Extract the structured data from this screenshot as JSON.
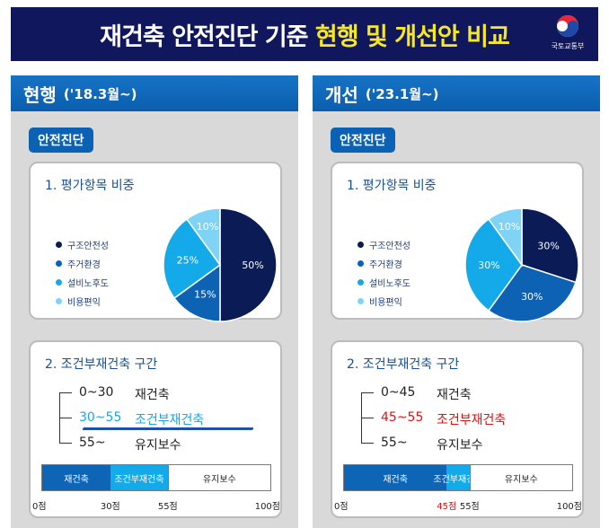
{
  "header": {
    "title_prefix": "재건축 안전진단 기준 ",
    "title_highlight": "현행 및 개선안 비교",
    "logo_text": "국토교통부"
  },
  "panels": [
    {
      "title": "현행",
      "date": "('18.3월~)",
      "tag": "안전진단",
      "weights": {
        "title": "1. 평가항목 비중",
        "legend": [
          "구조안전성",
          "주거환경",
          "설비노후도",
          "비용편익"
        ],
        "colors": [
          "#0b1b55",
          "#0d62b4",
          "#14aaea",
          "#7fd3f5"
        ],
        "values": [
          50,
          15,
          25,
          10
        ],
        "labels": [
          "50%",
          "15%",
          "25%",
          "10%"
        ]
      },
      "ranges": {
        "title": "2. 조건부재건축 구간",
        "rows": [
          {
            "range": "0~30",
            "label": "재건축"
          },
          {
            "range": "30~55",
            "label": "조건부재건축"
          },
          {
            "range": "55~",
            "label": "유지보수"
          }
        ],
        "segments": [
          {
            "label": "재건축",
            "from": 0,
            "to": 30
          },
          {
            "label": "조건부재건축",
            "from": 30,
            "to": 55
          },
          {
            "label": "유지보수",
            "from": 55,
            "to": 100
          }
        ],
        "ticks": [
          {
            "label": "0점",
            "value": 0
          },
          {
            "label": "30점",
            "value": 30
          },
          {
            "label": "55점",
            "value": 55
          },
          {
            "label": "100점",
            "value": 100
          }
        ]
      }
    },
    {
      "title": "개선",
      "date": "('23.1월~)",
      "tag": "안전진단",
      "weights": {
        "title": "1. 평가항목 비중",
        "legend": [
          "구조안전성",
          "주거환경",
          "설비노후도",
          "비용편익"
        ],
        "colors": [
          "#0b1b55",
          "#0d62b4",
          "#14aaea",
          "#7fd3f5"
        ],
        "values": [
          30,
          30,
          30,
          10
        ],
        "labels": [
          "30%",
          "30%",
          "30%",
          "10%"
        ]
      },
      "ranges": {
        "title": "2. 조건부재건축 구간",
        "rows": [
          {
            "range": "0~45",
            "label": "재건축"
          },
          {
            "range": "45~55",
            "label": "조건부재건축"
          },
          {
            "range": "55~",
            "label": "유지보수"
          }
        ],
        "segments": [
          {
            "label": "재건축",
            "from": 0,
            "to": 45
          },
          {
            "label": "조건부재건축",
            "from": 45,
            "to": 55
          },
          {
            "label": "유지보수",
            "from": 55,
            "to": 100
          }
        ],
        "ticks": [
          {
            "label": "0점",
            "value": 0
          },
          {
            "label": "45점",
            "value": 45
          },
          {
            "label": "55점",
            "value": 55
          },
          {
            "label": "100점",
            "value": 100
          }
        ]
      }
    }
  ]
}
